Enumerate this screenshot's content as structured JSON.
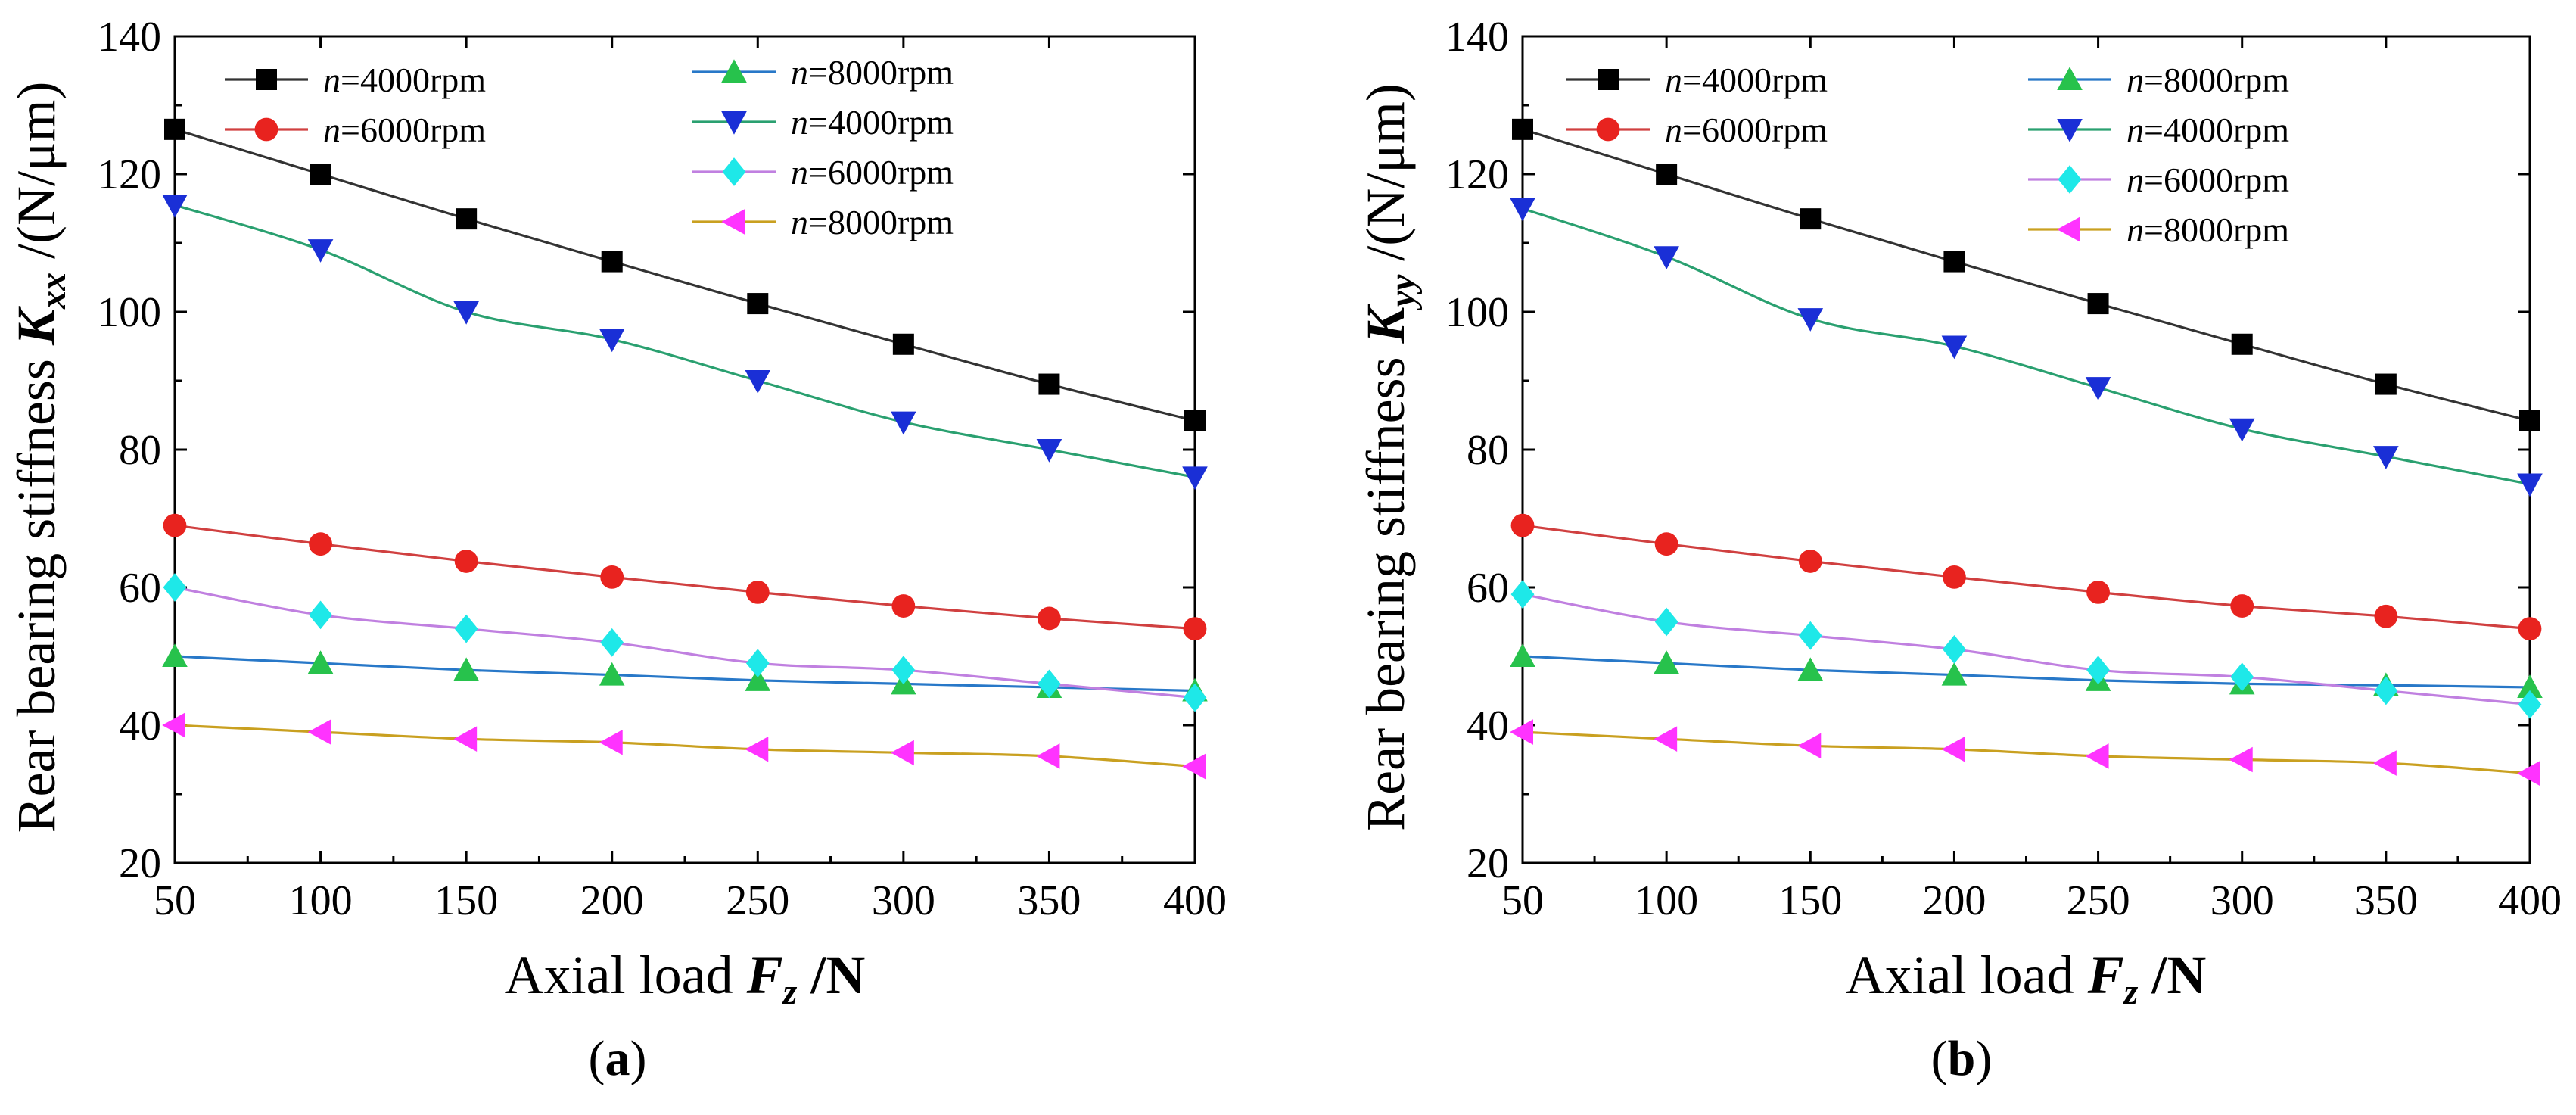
{
  "chart_data": [
    {
      "type": "line",
      "panel_label": "(a)",
      "xlabel": {
        "prefix": "Axial load ",
        "var": "F",
        "sub": "z",
        "unit": " /N"
      },
      "ylabel": {
        "prefix": "Rear bearing stiffness ",
        "var": "K",
        "sub": "xx",
        "unit": " /(N/μm)"
      },
      "xlim": [
        50,
        400
      ],
      "ylim": [
        20,
        140
      ],
      "x_ticks": [
        50,
        100,
        150,
        200,
        250,
        300,
        350,
        400
      ],
      "y_ticks": [
        20,
        40,
        60,
        80,
        100,
        120,
        140
      ],
      "x": [
        50,
        100,
        150,
        200,
        250,
        300,
        350,
        400
      ],
      "grid": false,
      "series": [
        {
          "name": "=4000rpm",
          "var": "n",
          "color": "#000000",
          "line": "#333333",
          "marker": "square",
          "values": [
            126.5,
            120,
            113.5,
            107.3,
            101.2,
            95.3,
            89.5,
            84.2
          ]
        },
        {
          "name": "=6000rpm",
          "var": "n",
          "color": "#e8231f",
          "line": "#d04040",
          "marker": "circle",
          "values": [
            69,
            66.3,
            63.8,
            61.5,
            59.3,
            57.3,
            55.5,
            54
          ]
        },
        {
          "name": "=8000rpm",
          "var": "n",
          "color": "#27c24c",
          "line": "#2878c8",
          "marker": "triangle-up",
          "values": [
            50,
            49,
            48,
            47.3,
            46.5,
            46,
            45.5,
            45
          ]
        },
        {
          "name": "=4000rpm",
          "var": "n",
          "color": "#1a2fd6",
          "line": "#2aa070",
          "marker": "triangle-down",
          "values": [
            115.5,
            109,
            100,
            96,
            90,
            84,
            80,
            76
          ]
        },
        {
          "name": "=6000rpm",
          "var": "n",
          "color": "#1ee8e8",
          "line": "#c080e0",
          "marker": "diamond",
          "values": [
            60,
            56,
            54,
            52,
            49,
            48,
            46,
            44
          ]
        },
        {
          "name": "=8000rpm",
          "var": "n",
          "color": "#ff33ff",
          "line": "#c9a020",
          "marker": "triangle-left",
          "values": [
            40,
            39,
            38,
            37.5,
            36.5,
            36,
            35.5,
            34
          ]
        }
      ]
    },
    {
      "type": "line",
      "panel_label": "(b)",
      "xlabel": {
        "prefix": "Axial load ",
        "var": "F",
        "sub": "z",
        "unit": " /N"
      },
      "ylabel": {
        "prefix": "Rear bearing stiffness ",
        "var": "K",
        "sub": "yy",
        "unit": " /(N/μm)"
      },
      "xlim": [
        50,
        400
      ],
      "ylim": [
        20,
        140
      ],
      "x_ticks": [
        50,
        100,
        150,
        200,
        250,
        300,
        350,
        400
      ],
      "y_ticks": [
        20,
        40,
        60,
        80,
        100,
        120,
        140
      ],
      "x": [
        50,
        100,
        150,
        200,
        250,
        300,
        350,
        400
      ],
      "grid": false,
      "series": [
        {
          "name": "=4000rpm",
          "var": "n",
          "color": "#000000",
          "line": "#333333",
          "marker": "square",
          "values": [
            126.5,
            120,
            113.5,
            107.3,
            101.2,
            95.3,
            89.5,
            84.2
          ]
        },
        {
          "name": "=6000rpm",
          "var": "n",
          "color": "#e8231f",
          "line": "#d04040",
          "marker": "circle",
          "values": [
            69,
            66.3,
            63.8,
            61.5,
            59.3,
            57.3,
            55.8,
            54
          ]
        },
        {
          "name": "=8000rpm",
          "var": "n",
          "color": "#27c24c",
          "line": "#2878c8",
          "marker": "triangle-up",
          "values": [
            50,
            49,
            48,
            47.3,
            46.5,
            46,
            45.8,
            45.5
          ]
        },
        {
          "name": "=4000rpm",
          "var": "n",
          "color": "#1a2fd6",
          "line": "#2aa070",
          "marker": "triangle-down",
          "values": [
            115,
            108,
            99,
            95,
            89,
            83,
            79,
            75
          ]
        },
        {
          "name": "=6000rpm",
          "var": "n",
          "color": "#1ee8e8",
          "line": "#c080e0",
          "marker": "diamond",
          "values": [
            59,
            55,
            53,
            51,
            48,
            47,
            45,
            43
          ]
        },
        {
          "name": "=8000rpm",
          "var": "n",
          "color": "#ff33ff",
          "line": "#c9a020",
          "marker": "triangle-left",
          "values": [
            39,
            38,
            37,
            36.5,
            35.5,
            35,
            34.5,
            33
          ]
        }
      ]
    }
  ]
}
